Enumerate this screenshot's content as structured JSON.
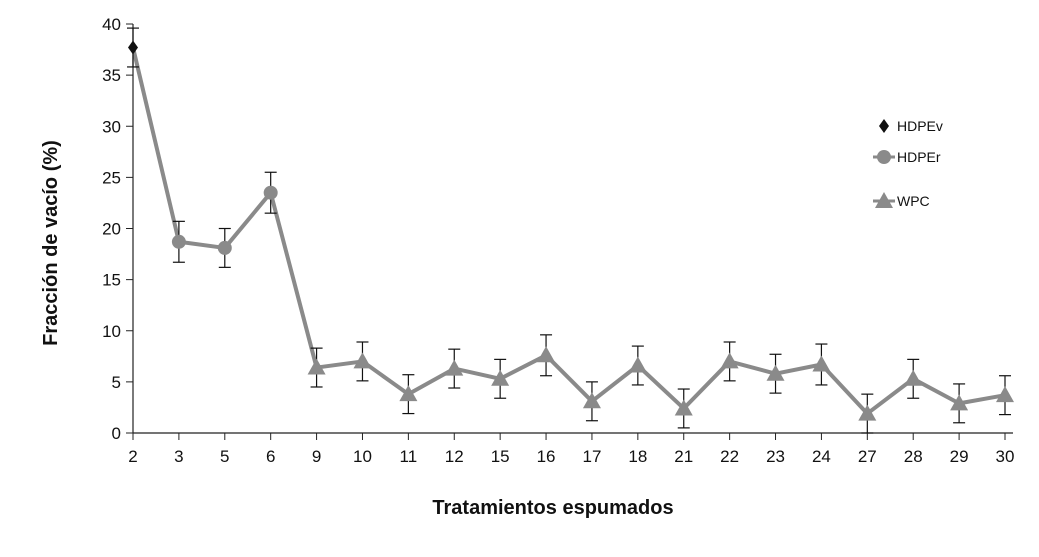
{
  "chart_data": {
    "type": "line",
    "title": "",
    "xlabel": "Tratamientos espumados",
    "ylabel": "Fracción de vacío (%)",
    "ylim": [
      0,
      40
    ],
    "yticks": [
      0,
      5,
      10,
      15,
      20,
      25,
      30,
      35,
      40
    ],
    "grid": false,
    "legend_position": "right",
    "line_color": "#8a8a8a",
    "categories": [
      "2",
      "3",
      "5",
      "6",
      "9",
      "10",
      "11",
      "12",
      "15",
      "16",
      "17",
      "18",
      "21",
      "22",
      "23",
      "24",
      "27",
      "28",
      "29",
      "30"
    ],
    "values": [
      37.7,
      18.7,
      18.1,
      23.5,
      6.4,
      7.0,
      3.8,
      6.3,
      5.3,
      7.6,
      3.1,
      6.6,
      2.4,
      7.0,
      5.8,
      6.7,
      1.9,
      5.3,
      2.9,
      3.7
    ],
    "errors": [
      1.9,
      2.0,
      1.9,
      2.0,
      1.9,
      1.9,
      1.9,
      1.9,
      1.9,
      2.0,
      1.9,
      1.9,
      1.9,
      1.9,
      1.9,
      2.0,
      1.9,
      1.9,
      1.9,
      1.9
    ],
    "marker_series": [
      0,
      1,
      1,
      1,
      2,
      2,
      2,
      2,
      2,
      2,
      2,
      2,
      2,
      2,
      2,
      2,
      2,
      2,
      2,
      2
    ],
    "series": [
      {
        "name": "HDPEv",
        "marker": "diamond",
        "color": "#111111"
      },
      {
        "name": "HDPEr",
        "marker": "circle",
        "color": "#8a8a8a"
      },
      {
        "name": "WPC",
        "marker": "triangle",
        "color": "#8a8a8a"
      }
    ]
  }
}
